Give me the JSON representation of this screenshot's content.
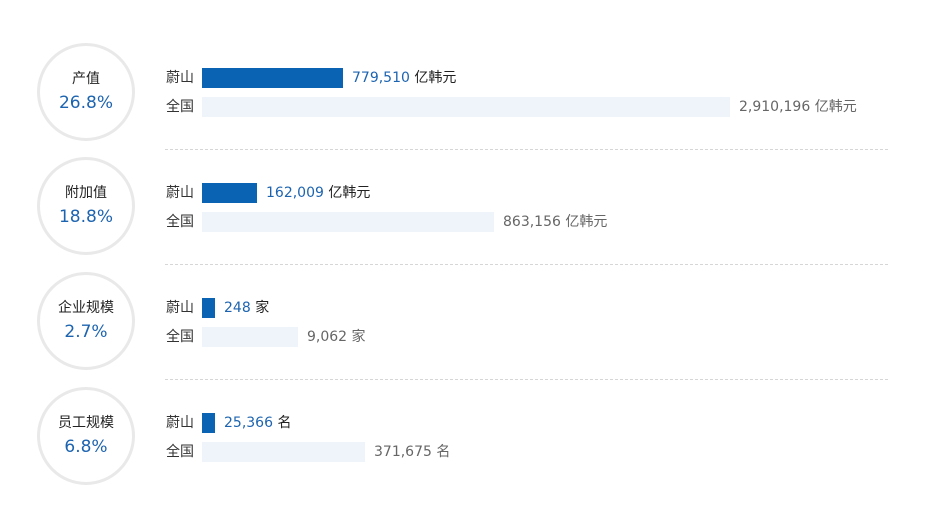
{
  "legend": {
    "local": "蔚山",
    "national": "全国"
  },
  "chart_data": {
    "type": "bar",
    "groups": [
      {
        "label": "产值",
        "share": "26.8%",
        "local": 779510,
        "local_text": "779,510",
        "national": 2910196,
        "national_text": "2,910,196",
        "unit": "亿韩元"
      },
      {
        "label": "附加值",
        "share": "18.8%",
        "local": 162009,
        "local_text": "162,009",
        "national": 863156,
        "national_text": "863,156",
        "unit": "亿韩元"
      },
      {
        "label": "企业规模",
        "share": "2.7%",
        "local": 248,
        "local_text": "248",
        "national": 9062,
        "national_text": "9,062",
        "unit": "家"
      },
      {
        "label": "员工规模",
        "share": "6.8%",
        "local": 25366,
        "local_text": "25,366",
        "national": 371675,
        "national_text": "371,675",
        "unit": "名"
      }
    ]
  },
  "colors": {
    "local_bar": "#0a63b3",
    "national_bar": "#eef4fa",
    "accent_text": "#1d64b0"
  }
}
